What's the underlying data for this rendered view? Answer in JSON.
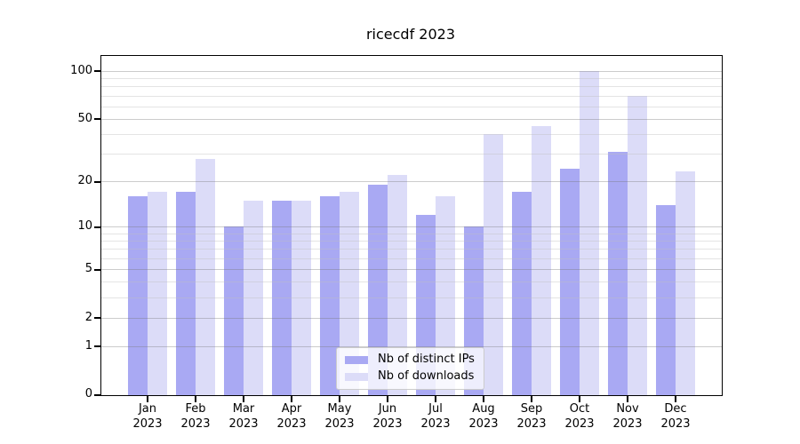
{
  "title": "ricecdf 2023",
  "colors": {
    "ips": "#a9a9f3",
    "downloads": "#dcdcf8",
    "grid_major": "#c3c3c3",
    "grid_minor": "#ececec",
    "axis": "#000000",
    "background": "#ffffff"
  },
  "y_axis": {
    "ticks": [
      0,
      1,
      2,
      5,
      10,
      20,
      50,
      100
    ],
    "minor_gridlines": [
      3,
      4,
      6,
      7,
      8,
      9,
      30,
      40,
      60,
      70,
      80,
      90
    ],
    "scale": "log1p"
  },
  "x_axis": {
    "year": "2023",
    "months": [
      "Jan",
      "Feb",
      "Mar",
      "Apr",
      "May",
      "Jun",
      "Jul",
      "Aug",
      "Sep",
      "Oct",
      "Nov",
      "Dec"
    ]
  },
  "chart_data": {
    "type": "bar",
    "title": "ricecdf 2023",
    "categories": [
      "Jan 2023",
      "Feb 2023",
      "Mar 2023",
      "Apr 2023",
      "May 2023",
      "Jun 2023",
      "Jul 2023",
      "Aug 2023",
      "Sep 2023",
      "Oct 2023",
      "Nov 2023",
      "Dec 2023"
    ],
    "series": [
      {
        "name": "Nb of distinct IPs",
        "values": [
          16,
          17,
          10,
          15,
          16,
          19,
          12,
          10,
          17,
          24,
          31,
          14
        ]
      },
      {
        "name": "Nb of downloads",
        "values": [
          17,
          28,
          15,
          15,
          17,
          22,
          16,
          40,
          45,
          100,
          70,
          23
        ]
      }
    ],
    "ylabel": "",
    "xlabel": "",
    "yscale": "log1p",
    "yticks": [
      0,
      1,
      2,
      5,
      10,
      20,
      50,
      100
    ],
    "ylim": [
      0,
      125
    ],
    "grid": true,
    "legend_position": "bottom-center"
  }
}
